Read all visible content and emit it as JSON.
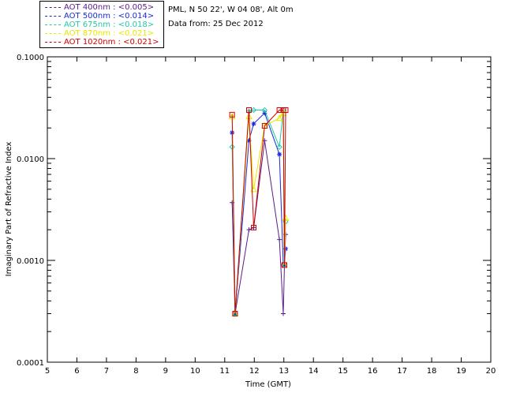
{
  "info": {
    "site": "PML, N 50 22', W 04 08', Alt 0m",
    "date": "Data from: 25 Dec 2012"
  },
  "legend": [
    {
      "label": "AOT  400nm : <0.005>",
      "color": "#5a1a8c"
    },
    {
      "label": "AOT  500nm : <0.014>",
      "color": "#1a2ad8"
    },
    {
      "label": "AOT  675nm : <0.018>",
      "color": "#22c8a8"
    },
    {
      "label": "AOT  870nm : <0.021>",
      "color": "#e8e800"
    },
    {
      "label": "AOT 1020nm : <0.021>",
      "color": "#d00000"
    }
  ],
  "chart_data": {
    "type": "line",
    "xlabel": "Time (GMT)",
    "ylabel": "Imaginary Part of Refractive Index",
    "xlim": [
      5,
      20
    ],
    "ylim": [
      0.0001,
      0.1
    ],
    "yscale": "log",
    "x_ticks": [
      "5",
      "6",
      "7",
      "8",
      "9",
      "10",
      "11",
      "12",
      "13",
      "14",
      "15",
      "16",
      "17",
      "18",
      "19",
      "20"
    ],
    "y_ticks": [
      "0.0001",
      "0.0010",
      "0.0100",
      "0.1000"
    ],
    "series": [
      {
        "name": "AOT  400nm : <0.005>",
        "color": "#5a1a8c",
        "marker": "plus",
        "x": [
          11.25,
          11.35,
          11.82,
          11.98,
          12.35,
          12.85,
          12.98,
          13.02,
          13.06
        ],
        "y": [
          0.0037,
          0.0003,
          0.002,
          0.0021,
          0.015,
          0.0016,
          0.0003,
          0.0009,
          0.0018
        ]
      },
      {
        "name": "AOT  500nm : <0.014>",
        "color": "#1a2ad8",
        "marker": "asterisk",
        "x": [
          11.25,
          11.35,
          11.82,
          11.98,
          12.35,
          12.85,
          12.98,
          13.02,
          13.06
        ],
        "y": [
          0.018,
          0.0003,
          0.015,
          0.022,
          0.028,
          0.011,
          0.0009,
          0.0009,
          0.0013
        ]
      },
      {
        "name": "AOT  675nm : <0.018>",
        "color": "#22c8a8",
        "marker": "diamond",
        "x": [
          11.25,
          11.35,
          11.82,
          11.98,
          12.35,
          12.85,
          12.98,
          13.02,
          13.06
        ],
        "y": [
          0.013,
          0.0003,
          0.029,
          0.03,
          0.03,
          0.013,
          0.03,
          0.0009,
          0.0024
        ]
      },
      {
        "name": "AOT  870nm : <0.021>",
        "color": "#e8e800",
        "marker": "triangle",
        "x": [
          11.25,
          11.35,
          11.82,
          11.98,
          12.35,
          12.85,
          12.98,
          13.02,
          13.06
        ],
        "y": [
          0.026,
          0.0003,
          0.026,
          0.005,
          0.021,
          0.025,
          0.028,
          0.0009,
          0.0026
        ]
      },
      {
        "name": "AOT 1020nm : <0.021>",
        "color": "#d00000",
        "marker": "square",
        "x": [
          11.25,
          11.35,
          11.82,
          11.98,
          12.35,
          12.85,
          12.98,
          13.02,
          13.06
        ],
        "y": [
          0.027,
          0.0003,
          0.03,
          0.0021,
          0.021,
          0.03,
          0.03,
          0.0009,
          0.03
        ]
      }
    ]
  }
}
